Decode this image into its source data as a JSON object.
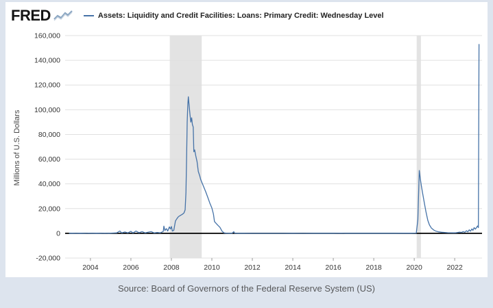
{
  "header": {
    "logo_text": "FRED",
    "legend_label": "Assets: Liquidity and Credit Facilities: Loans: Primary Credit: Wednesday Level"
  },
  "footer": {
    "source_text": "Source: Board of Governors of the Federal Reserve System (US)"
  },
  "colors": {
    "series": "#4572a7",
    "background_frame": "#dde4ee",
    "panel": "#ffffff",
    "gridline": "#e0e0e0",
    "recession_band": "#e3e3e3",
    "zero_line": "#000000",
    "tick_text": "#333333",
    "axis_title_text": "#464646"
  },
  "chart_data": {
    "type": "line",
    "title": "Assets: Liquidity and Credit Facilities: Loans: Primary Credit: Wednesday Level",
    "xlabel": "",
    "ylabel": "Millions of U.S. Dollars",
    "xlim": [
      2002.75,
      2023.35
    ],
    "ylim": [
      -20000,
      160000
    ],
    "x_ticks": [
      2004,
      2006,
      2008,
      2010,
      2012,
      2014,
      2016,
      2018,
      2020,
      2022
    ],
    "y_ticks": [
      -20000,
      0,
      20000,
      40000,
      60000,
      80000,
      100000,
      120000,
      140000,
      160000
    ],
    "grid": "horizontal",
    "legend_position": "top",
    "recession_bands": [
      {
        "start": 2007.92,
        "end": 2009.5
      },
      {
        "start": 2020.12,
        "end": 2020.33
      }
    ],
    "series": [
      {
        "name": "Assets: Liquidity and Credit Facilities: Loans: Primary Credit: Wednesday Level",
        "color": "#4572a7",
        "units": "Millions of U.S. Dollars",
        "points": [
          [
            2002.96,
            30
          ],
          [
            2003.1,
            80
          ],
          [
            2003.3,
            40
          ],
          [
            2003.5,
            120
          ],
          [
            2003.7,
            60
          ],
          [
            2003.9,
            90
          ],
          [
            2004.1,
            50
          ],
          [
            2004.3,
            110
          ],
          [
            2004.5,
            60
          ],
          [
            2004.7,
            140
          ],
          [
            2004.9,
            70
          ],
          [
            2005.1,
            200
          ],
          [
            2005.3,
            400
          ],
          [
            2005.45,
            1900
          ],
          [
            2005.55,
            300
          ],
          [
            2005.7,
            1100
          ],
          [
            2005.85,
            400
          ],
          [
            2006.0,
            1600
          ],
          [
            2006.1,
            300
          ],
          [
            2006.25,
            1800
          ],
          [
            2006.4,
            500
          ],
          [
            2006.55,
            1400
          ],
          [
            2006.7,
            400
          ],
          [
            2006.85,
            900
          ],
          [
            2007.0,
            1400
          ],
          [
            2007.15,
            300
          ],
          [
            2007.3,
            700
          ],
          [
            2007.45,
            400
          ],
          [
            2007.6,
            1500
          ],
          [
            2007.63,
            5800
          ],
          [
            2007.68,
            2200
          ],
          [
            2007.75,
            3800
          ],
          [
            2007.82,
            1800
          ],
          [
            2007.9,
            5200
          ],
          [
            2007.95,
            3500
          ],
          [
            2008.0,
            5500
          ],
          [
            2008.05,
            1800
          ],
          [
            2008.12,
            2500
          ],
          [
            2008.2,
            10000
          ],
          [
            2008.28,
            12000
          ],
          [
            2008.35,
            13500
          ],
          [
            2008.45,
            14500
          ],
          [
            2008.55,
            15500
          ],
          [
            2008.62,
            16500
          ],
          [
            2008.68,
            19000
          ],
          [
            2008.72,
            33000
          ],
          [
            2008.75,
            60000
          ],
          [
            2008.78,
            90000
          ],
          [
            2008.81,
            104000
          ],
          [
            2008.84,
            110500
          ],
          [
            2008.88,
            103000
          ],
          [
            2008.92,
            96000
          ],
          [
            2008.96,
            90000
          ],
          [
            2009.0,
            93500
          ],
          [
            2009.04,
            88000
          ],
          [
            2009.08,
            86000
          ],
          [
            2009.11,
            66000
          ],
          [
            2009.15,
            67500
          ],
          [
            2009.2,
            63000
          ],
          [
            2009.27,
            58000
          ],
          [
            2009.33,
            50000
          ],
          [
            2009.4,
            46500
          ],
          [
            2009.45,
            43500
          ],
          [
            2009.5,
            41500
          ],
          [
            2009.6,
            37500
          ],
          [
            2009.7,
            33500
          ],
          [
            2009.8,
            29000
          ],
          [
            2009.9,
            24500
          ],
          [
            2010.0,
            20500
          ],
          [
            2010.08,
            15500
          ],
          [
            2010.13,
            9500
          ],
          [
            2010.2,
            8200
          ],
          [
            2010.3,
            6500
          ],
          [
            2010.4,
            4800
          ],
          [
            2010.5,
            1800
          ],
          [
            2010.6,
            400
          ],
          [
            2010.7,
            120
          ],
          [
            2010.85,
            60
          ],
          [
            2011.0,
            40
          ],
          [
            2011.08,
            1300
          ],
          [
            2011.13,
            100
          ],
          [
            2011.3,
            30
          ],
          [
            2011.6,
            25
          ],
          [
            2012.0,
            20
          ],
          [
            2012.5,
            15
          ],
          [
            2013.0,
            20
          ],
          [
            2013.5,
            15
          ],
          [
            2014.0,
            25
          ],
          [
            2014.5,
            20
          ],
          [
            2015.0,
            30
          ],
          [
            2015.5,
            25
          ],
          [
            2016.0,
            50
          ],
          [
            2016.4,
            180
          ],
          [
            2016.6,
            40
          ],
          [
            2017.0,
            35
          ],
          [
            2017.5,
            30
          ],
          [
            2018.0,
            60
          ],
          [
            2018.5,
            45
          ],
          [
            2019.0,
            50
          ],
          [
            2019.5,
            80
          ],
          [
            2019.85,
            120
          ],
          [
            2020.1,
            200
          ],
          [
            2020.18,
            11000
          ],
          [
            2020.21,
            28200
          ],
          [
            2020.25,
            50800
          ],
          [
            2020.3,
            44000
          ],
          [
            2020.35,
            38500
          ],
          [
            2020.42,
            32000
          ],
          [
            2020.5,
            24500
          ],
          [
            2020.58,
            17500
          ],
          [
            2020.67,
            10500
          ],
          [
            2020.75,
            6800
          ],
          [
            2020.85,
            4200
          ],
          [
            2020.95,
            2800
          ],
          [
            2021.05,
            1900
          ],
          [
            2021.2,
            1200
          ],
          [
            2021.35,
            900
          ],
          [
            2021.5,
            700
          ],
          [
            2021.65,
            500
          ],
          [
            2021.8,
            420
          ],
          [
            2021.95,
            380
          ],
          [
            2022.05,
            450
          ],
          [
            2022.15,
            700
          ],
          [
            2022.25,
            1000
          ],
          [
            2022.33,
            700
          ],
          [
            2022.42,
            1400
          ],
          [
            2022.5,
            900
          ],
          [
            2022.58,
            2100
          ],
          [
            2022.65,
            1200
          ],
          [
            2022.72,
            2800
          ],
          [
            2022.78,
            1700
          ],
          [
            2022.85,
            3600
          ],
          [
            2022.9,
            2400
          ],
          [
            2022.96,
            4600
          ],
          [
            2023.02,
            3400
          ],
          [
            2023.08,
            4700
          ],
          [
            2023.13,
            6000
          ],
          [
            2023.17,
            4600
          ],
          [
            2023.2,
            152850
          ]
        ]
      }
    ]
  }
}
